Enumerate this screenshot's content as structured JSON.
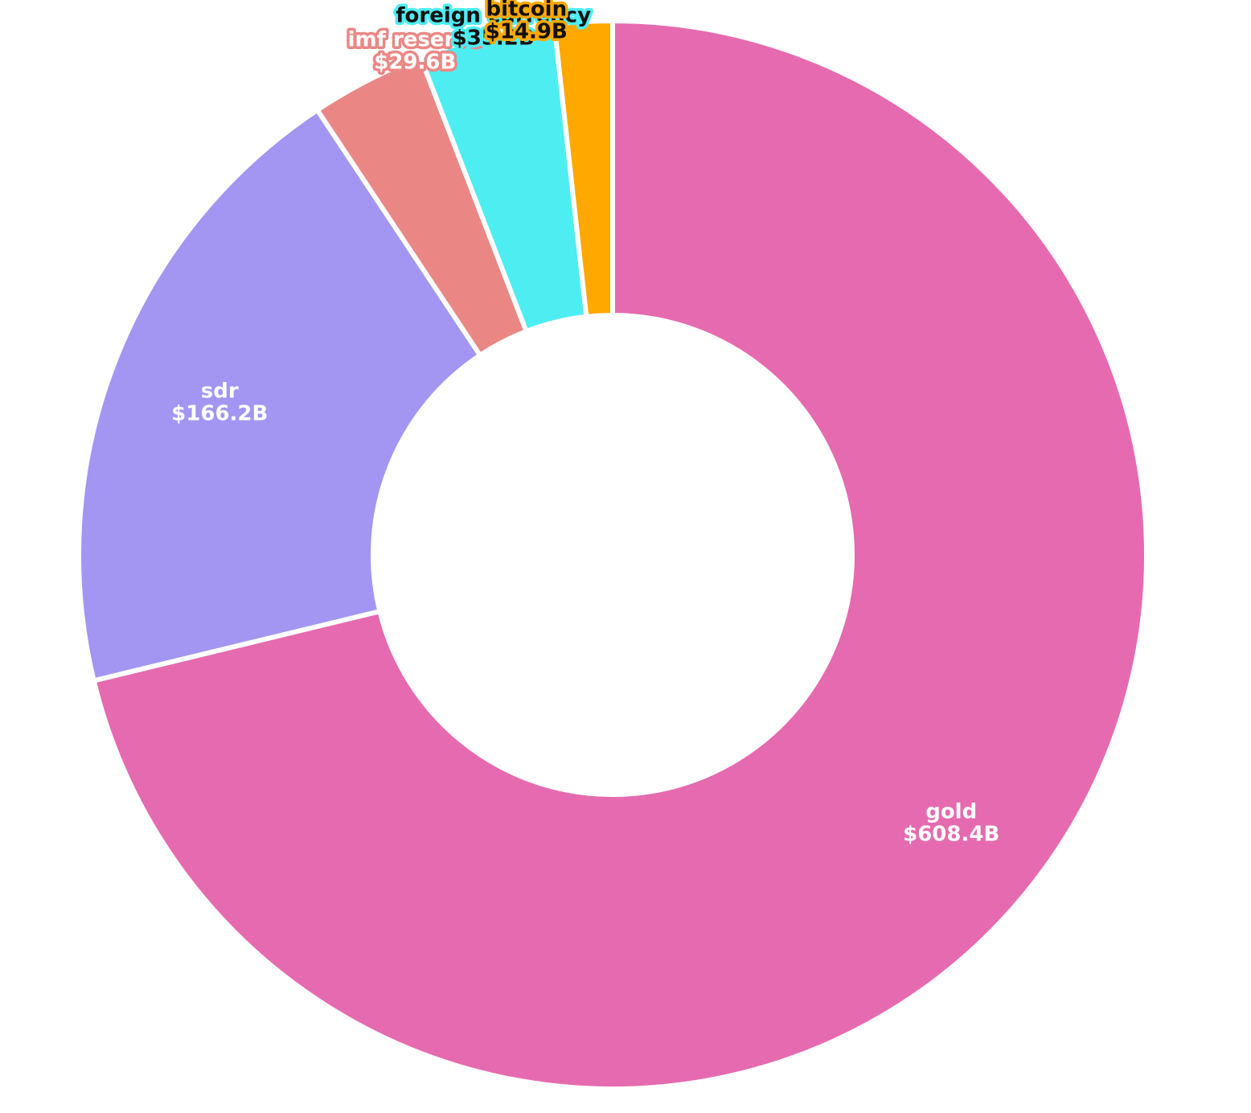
{
  "chart_data": {
    "type": "pie",
    "variant": "donut",
    "start_angle_deg": 0,
    "direction": "clockwise",
    "slices": [
      {
        "name": "gold",
        "value": 608.4,
        "value_label": "$608.4B",
        "color": "#e66aaf",
        "text_color": "#ffffff",
        "halo_color": "#e66aaf"
      },
      {
        "name": "sdr",
        "value": 166.2,
        "value_label": "$166.2B",
        "color": "#a296f2",
        "text_color": "#ffffff",
        "halo_color": "#a296f2"
      },
      {
        "name": "imf reserve",
        "value": 29.6,
        "value_label": "$29.6B",
        "color": "#ea8785",
        "text_color": "#ffffff",
        "halo_color": "#ea8785"
      },
      {
        "name": "foreign currency",
        "value": 35.2,
        "value_label": "$35.2B",
        "color": "#4eedf2",
        "text_color": "#111111",
        "halo_color": "#4eedf2"
      },
      {
        "name": "bitcoin",
        "value": 14.9,
        "value_label": "$14.9B",
        "color": "#ffa800",
        "text_color": "#111111",
        "halo_color": "#ffa800"
      }
    ]
  }
}
